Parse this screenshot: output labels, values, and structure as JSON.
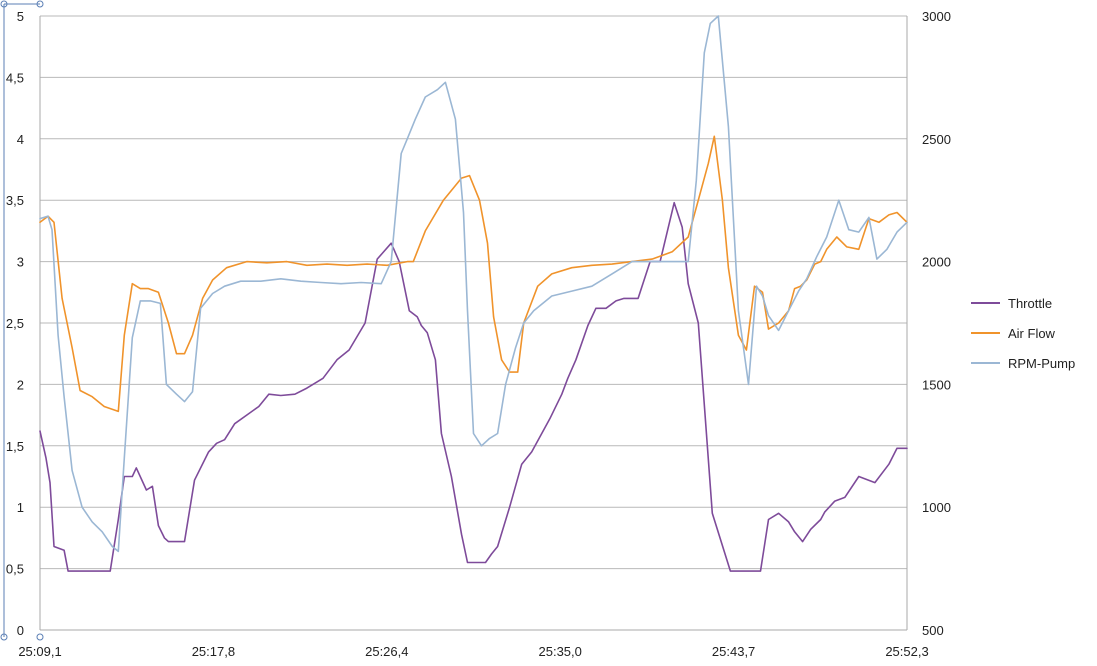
{
  "chart_data": {
    "type": "line",
    "x_labels": [
      "25:09,1",
      "25:17,8",
      "25:26,4",
      "25:35,0",
      "25:43,7",
      "25:52,3"
    ],
    "x_range": [
      0,
      43.2
    ],
    "y_left": {
      "ticks": [
        "0",
        "0,5",
        "1",
        "1,5",
        "2",
        "2,5",
        "3",
        "3,5",
        "4",
        "4,5",
        "5"
      ],
      "range": [
        0,
        5
      ]
    },
    "y_right": {
      "ticks": [
        "500",
        "1000",
        "1500",
        "2000",
        "2500",
        "3000"
      ],
      "range": [
        500,
        3000
      ]
    },
    "grid": "horizontal",
    "legend_position": "right",
    "series": [
      {
        "name": "Throttle",
        "axis": "left",
        "color": "#7E4B9A",
        "x": [
          0,
          0.3,
          0.5,
          0.7,
          1.2,
          1.4,
          1.7,
          2.5,
          3.5,
          3.9,
          4.2,
          4.6,
          4.8,
          5.3,
          5.6,
          5.9,
          6.2,
          6.4,
          6.8,
          7.2,
          7.7,
          8.4,
          8.8,
          9.2,
          9.7,
          10.3,
          10.9,
          11.4,
          12.0,
          12.7,
          13.3,
          14.1,
          14.8,
          15.4,
          16.2,
          16.8,
          17.5,
          17.9,
          18.4,
          18.8,
          19.0,
          19.3,
          19.7,
          20.0,
          20.5,
          21.0,
          21.3,
          21.8,
          22.2,
          22.5,
          22.8,
          23.4,
          24.0,
          24.5,
          25.4,
          26.0,
          26.3,
          26.7,
          27.3,
          27.7,
          28.2,
          28.7,
          29.1,
          29.8,
          30.4,
          30.9,
          31.6,
          32.0,
          32.3,
          32.8,
          33.5,
          34.4,
          35.2,
          35.9,
          36.3,
          36.8,
          37.3,
          37.6,
          38.0,
          38.4,
          38.9,
          39.1,
          39.6,
          40.1,
          40.8,
          41.6,
          42.3,
          42.7,
          43.0,
          43.2
        ],
        "y": [
          1.62,
          1.4,
          1.2,
          0.68,
          0.65,
          0.48,
          0.48,
          0.48,
          0.48,
          0.9,
          1.25,
          1.25,
          1.32,
          1.14,
          1.17,
          0.85,
          0.75,
          0.72,
          0.72,
          0.72,
          1.22,
          1.45,
          1.52,
          1.55,
          1.68,
          1.75,
          1.82,
          1.92,
          1.91,
          1.92,
          1.97,
          2.05,
          2.2,
          2.28,
          2.5,
          3.02,
          3.15,
          3.0,
          2.6,
          2.55,
          2.48,
          2.42,
          2.2,
          1.6,
          1.25,
          0.78,
          0.55,
          0.55,
          0.55,
          0.62,
          0.68,
          1.0,
          1.35,
          1.45,
          1.72,
          1.92,
          2.05,
          2.2,
          2.48,
          2.62,
          2.62,
          2.68,
          2.7,
          2.7,
          3.0,
          3.0,
          3.48,
          3.28,
          2.82,
          2.5,
          0.95,
          0.48,
          0.48,
          0.48,
          0.9,
          0.95,
          0.88,
          0.8,
          0.72,
          0.82,
          0.9,
          0.96,
          1.05,
          1.08,
          1.25,
          1.2,
          1.35,
          1.48,
          1.48,
          1.48
        ]
      },
      {
        "name": "Air Flow",
        "axis": "left",
        "color": "#F0932B",
        "x": [
          0,
          0.4,
          0.7,
          1.1,
          1.6,
          2.0,
          2.6,
          3.2,
          3.9,
          4.2,
          4.6,
          5.0,
          5.4,
          5.9,
          6.4,
          6.8,
          7.2,
          7.6,
          8.1,
          8.6,
          9.3,
          10.3,
          11.3,
          12.3,
          13.3,
          14.3,
          15.3,
          16.3,
          17.3,
          18.3,
          18.6,
          19.2,
          20.1,
          21.0,
          21.4,
          21.9,
          22.3,
          22.6,
          23.0,
          23.4,
          23.8,
          24.1,
          24.8,
          25.5,
          26.5,
          27.5,
          28.5,
          29.5,
          30.5,
          31.5,
          32.3,
          32.8,
          33.3,
          33.6,
          34.0,
          34.3,
          34.8,
          35.2,
          35.6,
          36.0,
          36.3,
          36.8,
          37.3,
          37.6,
          37.9,
          38.2,
          38.6,
          38.9,
          39.2,
          39.7,
          40.2,
          40.8,
          41.3,
          41.8,
          42.3,
          42.7,
          43.2
        ],
        "y": [
          3.32,
          3.37,
          3.32,
          2.7,
          2.3,
          1.95,
          1.9,
          1.82,
          1.78,
          2.4,
          2.82,
          2.78,
          2.78,
          2.75,
          2.5,
          2.25,
          2.25,
          2.4,
          2.7,
          2.85,
          2.95,
          3.0,
          2.99,
          3.0,
          2.97,
          2.98,
          2.97,
          2.98,
          2.97,
          3.0,
          3.0,
          3.25,
          3.5,
          3.68,
          3.7,
          3.5,
          3.15,
          2.55,
          2.2,
          2.1,
          2.1,
          2.5,
          2.8,
          2.9,
          2.95,
          2.97,
          2.98,
          3.0,
          3.02,
          3.08,
          3.2,
          3.5,
          3.8,
          4.02,
          3.5,
          2.95,
          2.4,
          2.28,
          2.8,
          2.75,
          2.45,
          2.5,
          2.6,
          2.78,
          2.8,
          2.85,
          2.98,
          3.0,
          3.1,
          3.2,
          3.12,
          3.1,
          3.35,
          3.32,
          3.38,
          3.4,
          3.32
        ]
      },
      {
        "name": "RPM-Pump",
        "axis": "right",
        "color": "#9BB7D4",
        "x": [
          0,
          0.4,
          0.6,
          0.9,
          1.2,
          1.6,
          2.1,
          2.6,
          3.1,
          3.6,
          3.9,
          4.2,
          4.6,
          5.0,
          5.5,
          6.0,
          6.3,
          6.8,
          7.2,
          7.6,
          8.0,
          8.6,
          9.2,
          10.0,
          11.0,
          12.0,
          13.0,
          14.0,
          15.0,
          16.0,
          17.0,
          17.5,
          18.0,
          18.3,
          18.7,
          19.2,
          19.8,
          20.2,
          20.7,
          21.1,
          21.3,
          21.6,
          22.0,
          22.4,
          22.8,
          23.2,
          23.7,
          24.1,
          24.6,
          25.5,
          26.5,
          27.5,
          28.5,
          29.5,
          30.5,
          31.5,
          32.3,
          32.7,
          33.1,
          33.4,
          33.8,
          34.3,
          34.8,
          35.3,
          35.7,
          36.0,
          36.3,
          36.8,
          37.3,
          37.8,
          38.2,
          38.7,
          39.2,
          39.8,
          40.3,
          40.8,
          41.3,
          41.7,
          42.2,
          42.7,
          43.2
        ],
        "y": [
          2175,
          2185,
          2130,
          1700,
          1450,
          1150,
          1000,
          940,
          900,
          840,
          820,
          1200,
          1690,
          1840,
          1840,
          1830,
          1500,
          1460,
          1430,
          1470,
          1810,
          1870,
          1900,
          1920,
          1920,
          1930,
          1920,
          1915,
          1910,
          1915,
          1910,
          2000,
          2440,
          2500,
          2580,
          2670,
          2700,
          2730,
          2580,
          2200,
          1800,
          1300,
          1250,
          1280,
          1300,
          1500,
          1650,
          1750,
          1800,
          1860,
          1880,
          1900,
          1950,
          2000,
          2000,
          2000,
          2000,
          2330,
          2850,
          2970,
          3000,
          2550,
          1800,
          1500,
          1900,
          1860,
          1780,
          1720,
          1800,
          1880,
          1930,
          2020,
          2100,
          2250,
          2130,
          2120,
          2180,
          2010,
          2050,
          2120,
          2160
        ]
      }
    ]
  }
}
